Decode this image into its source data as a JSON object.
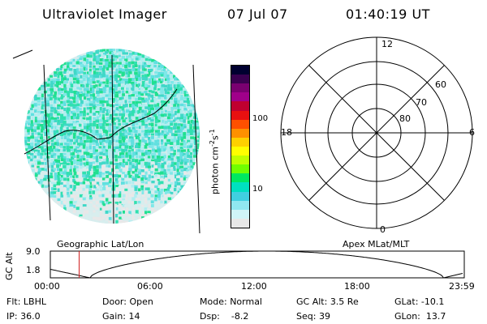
{
  "header": {
    "title": "Ultraviolet Imager",
    "date": "07 Jul 07",
    "time": "01:40:19 UT"
  },
  "colorbar": {
    "label_main": "photon cm",
    "label_exp1": "-2",
    "label_s": "s",
    "label_exp2": "-1",
    "ticks": [
      {
        "label": "100",
        "value": 100
      },
      {
        "label": "10",
        "value": 10
      }
    ],
    "colors": [
      "#000030",
      "#3a0050",
      "#7a0070",
      "#a0008a",
      "#c00030",
      "#e81010",
      "#ff5000",
      "#ff9000",
      "#ffd000",
      "#ffff00",
      "#c0ff00",
      "#70ff00",
      "#00e860",
      "#00e0c0",
      "#40d0e0",
      "#90e8f0",
      "#d0f4f8",
      "#e8e8e8"
    ]
  },
  "polar_grid": {
    "mlt_labels": [
      {
        "label": "12",
        "angle": 0
      },
      {
        "label": "18",
        "angle": 270
      },
      {
        "label": "6",
        "angle": 90
      },
      {
        "label": "0",
        "angle": 180
      }
    ],
    "lat_labels": [
      "60",
      "70",
      "80"
    ]
  },
  "orbit_plot": {
    "left_label": "Geographic Lat/Lon",
    "right_label": "Apex MLat/MLT",
    "y_axis_label": "GC Alt",
    "y_max_label": "9.0",
    "y_min_label": "1.8",
    "y_range": [
      1.8,
      9.0
    ],
    "x_ticks": [
      "00:00",
      "06:00",
      "12:00",
      "18:00",
      "23:59"
    ],
    "marker_time_hours": 1.67,
    "marker_color": "#d02020"
  },
  "info": {
    "row1": [
      {
        "label": "Flt:",
        "value": "LBHL"
      },
      {
        "label": "Door:",
        "value": "Open"
      },
      {
        "label": "Mode:",
        "value": "Normal"
      },
      {
        "label": "GC Alt:",
        "value": "3.5 Re"
      },
      {
        "label": "GLat:",
        "value": "-10.1"
      }
    ],
    "row2": [
      {
        "label": "IP:",
        "value": "36.0"
      },
      {
        "label": "Gain:",
        "value": "14"
      },
      {
        "label": "Dsp:",
        "value": "-8.2"
      },
      {
        "label": "Seq:",
        "value": "39"
      },
      {
        "label": "GLon:",
        "value": "13.7"
      }
    ]
  }
}
